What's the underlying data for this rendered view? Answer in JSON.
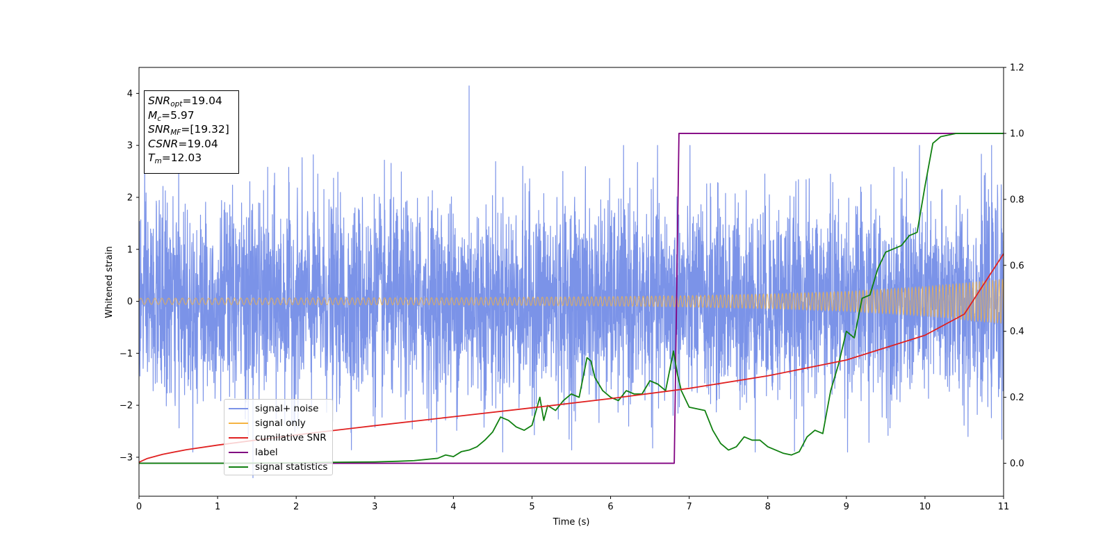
{
  "chart_data": {
    "type": "line",
    "xlabel": "Time (s)",
    "ylabel": "Whitened strain",
    "xlim": [
      0,
      11
    ],
    "ylim": [
      -3.75,
      4.5
    ],
    "y2lim": [
      -0.1,
      1.2
    ],
    "x_ticks": [
      0,
      1,
      2,
      3,
      4,
      5,
      6,
      7,
      8,
      9,
      10,
      11
    ],
    "y_ticks": [
      -3,
      -2,
      -1,
      0,
      1,
      2,
      3,
      4
    ],
    "y_tick_labels": [
      "−3",
      "−2",
      "−1",
      "0",
      "1",
      "2",
      "3",
      "4"
    ],
    "y2_ticks": [
      0.0,
      0.2,
      0.4,
      0.6,
      0.8,
      1.0,
      1.2
    ],
    "y2_tick_labels": [
      "0.0",
      "0.2",
      "0.4",
      "0.6",
      "0.8",
      "1.0",
      "1.2"
    ],
    "grid": false,
    "legend_position": "lower-left",
    "info_box": {
      "snr_opt": "=19.04",
      "mc": "=5.97",
      "snr_mf": "=[19.32]",
      "csnr": "=19.04",
      "tm": "=12.03"
    },
    "series": [
      {
        "name": "signal+ noise",
        "axis": "left",
        "color": "#7b93e8",
        "description_values": {
          "envelope_typical": [
            -2.0,
            2.2
          ],
          "max_peak": [
            4.2,
            4.15
          ],
          "min_peak": [
            1.45,
            -3.4
          ]
        }
      },
      {
        "name": "signal only",
        "axis": "left",
        "color": "#f5b342",
        "amplitude": {
          "x": [
            0,
            2,
            4,
            6,
            7,
            8,
            9,
            10,
            11
          ],
          "y": [
            0.06,
            0.065,
            0.07,
            0.09,
            0.11,
            0.14,
            0.19,
            0.28,
            0.43
          ]
        }
      },
      {
        "name": "cumilative SNR",
        "axis": "right",
        "color": "#e02020",
        "x": [
          0,
          0.1,
          0.3,
          0.6,
          1,
          2,
          3,
          4,
          5,
          6,
          7,
          8,
          9,
          10,
          10.5,
          11
        ],
        "y": [
          0.003,
          0.014,
          0.027,
          0.041,
          0.055,
          0.086,
          0.114,
          0.141,
          0.168,
          0.196,
          0.227,
          0.265,
          0.313,
          0.388,
          0.452,
          0.635
        ]
      },
      {
        "name": "label",
        "axis": "right",
        "color": "#800080",
        "x": [
          0,
          6.81,
          6.87,
          11
        ],
        "y": [
          0,
          0,
          1,
          1
        ]
      },
      {
        "name": "signal statistics",
        "axis": "right",
        "color": "#108010",
        "x": [
          0,
          1,
          2,
          2.5,
          3,
          3.3,
          3.5,
          3.8,
          3.9,
          4.0,
          4.1,
          4.2,
          4.3,
          4.4,
          4.5,
          4.6,
          4.7,
          4.8,
          4.9,
          5.0,
          5.1,
          5.15,
          5.2,
          5.3,
          5.4,
          5.5,
          5.6,
          5.7,
          5.75,
          5.8,
          5.9,
          6.0,
          6.1,
          6.2,
          6.3,
          6.4,
          6.5,
          6.6,
          6.7,
          6.8,
          6.85,
          6.9,
          7.0,
          7.1,
          7.2,
          7.3,
          7.4,
          7.5,
          7.6,
          7.7,
          7.8,
          7.9,
          8.0,
          8.1,
          8.2,
          8.3,
          8.4,
          8.5,
          8.6,
          8.7,
          8.8,
          8.9,
          9.0,
          9.1,
          9.2,
          9.3,
          9.4,
          9.5,
          9.6,
          9.7,
          9.8,
          9.9,
          10.0,
          10.1,
          10.2,
          10.4,
          11.0
        ],
        "y": [
          0,
          0,
          0.001,
          0.003,
          0.004,
          0.006,
          0.008,
          0.015,
          0.025,
          0.02,
          0.035,
          0.04,
          0.05,
          0.07,
          0.095,
          0.14,
          0.13,
          0.11,
          0.1,
          0.115,
          0.2,
          0.13,
          0.175,
          0.16,
          0.19,
          0.21,
          0.2,
          0.32,
          0.31,
          0.26,
          0.22,
          0.2,
          0.19,
          0.22,
          0.21,
          0.21,
          0.25,
          0.24,
          0.22,
          0.34,
          0.27,
          0.22,
          0.17,
          0.165,
          0.16,
          0.1,
          0.06,
          0.04,
          0.05,
          0.08,
          0.07,
          0.07,
          0.05,
          0.04,
          0.03,
          0.025,
          0.035,
          0.08,
          0.1,
          0.09,
          0.22,
          0.3,
          0.4,
          0.38,
          0.5,
          0.51,
          0.59,
          0.64,
          0.65,
          0.66,
          0.69,
          0.7,
          0.84,
          0.97,
          0.99,
          1.0,
          1.0
        ]
      }
    ]
  }
}
